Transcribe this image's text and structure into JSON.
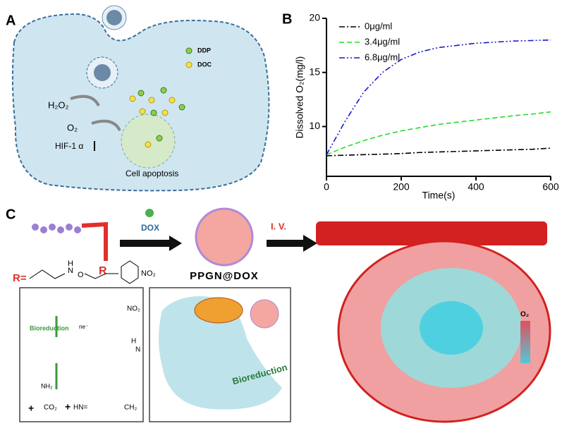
{
  "panel_a": {
    "label": "A",
    "legend": [
      "DDP",
      "DOC"
    ],
    "h2o2": "H₂O₂",
    "o2": "O₂",
    "hif": "HIF-1 α",
    "apoptosis": "Cell apoptosis"
  },
  "chart_data": {
    "type": "line",
    "panel_label": "B",
    "x_label": "Time(s)",
    "y_label": "Dissolved O₂(mg/l)",
    "x": [
      0,
      50,
      100,
      150,
      200,
      250,
      300,
      350,
      400,
      450,
      500,
      550,
      600
    ],
    "series": [
      {
        "name": "0μg/ml",
        "color": "#000000",
        "values": [
          7.3,
          7.35,
          7.4,
          7.45,
          7.5,
          7.6,
          7.65,
          7.7,
          7.75,
          7.8,
          7.85,
          7.9,
          8.0
        ]
      },
      {
        "name": "3.4μg/ml",
        "color": "#22dd22",
        "values": [
          7.4,
          8.1,
          8.7,
          9.2,
          9.6,
          9.9,
          10.2,
          10.4,
          10.6,
          10.8,
          11.0,
          11.15,
          11.35
        ]
      },
      {
        "name": "6.8μg/ml",
        "color": "#1a1acc",
        "values": [
          7.4,
          10.5,
          13.2,
          15.0,
          16.2,
          16.9,
          17.3,
          17.5,
          17.7,
          17.8,
          17.9,
          17.95,
          18.0
        ]
      }
    ],
    "xlim": [
      0,
      600
    ],
    "xticks": [
      0,
      200,
      400,
      600
    ],
    "ylim": [
      5.4,
      20
    ],
    "yticks": [
      10,
      15,
      20
    ],
    "legend": "upper left"
  },
  "panel_c": {
    "label": "C",
    "r": "R",
    "r_def": "R=",
    "nh": "N",
    "h": "H",
    "o": "O",
    "no2": "NO₂",
    "dox": "DOX",
    "product": "PPGN@DOX",
    "iv": "I. V.",
    "o2": "O₂",
    "box": {
      "no2": "NO₂",
      "bioreduction": "Bioreduction",
      "ne": "ne⁻",
      "nh": "N",
      "h": "H",
      "nh2": "NH₂",
      "plus1": "+",
      "co2": "CO₂",
      "plus2": "+",
      "hn": "HN=",
      "ch2": "CH₂"
    },
    "bioreduction": "Bioreduction"
  }
}
